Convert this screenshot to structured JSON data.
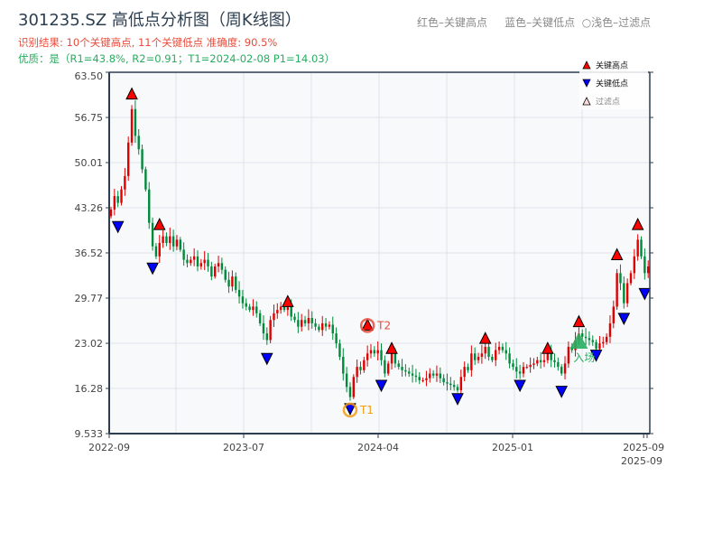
{
  "header": {
    "title": "301235.SZ 高低点分析图（周K线图）",
    "result_line": "识别结果: 10个关键高点, 11个关键低点  准确度: 90.5%",
    "quality_line": "优质：是（R1=43.8%, R2=0.91；T1=2024-02-08 P1=14.03）",
    "color_legend": "红色–关键高点     蓝色–关键低点  ○浅色–过滤点"
  },
  "chart_data": {
    "type": "candlestick",
    "title": "301235.SZ 高低点分析图（周K线图）",
    "ylim": [
      9.533,
      63.5
    ],
    "y_ticks": [
      "9.533",
      "16.28",
      "23.02",
      "29.77",
      "36.52",
      "43.26",
      "50.01",
      "56.75",
      "63.50"
    ],
    "x_ticks": [
      {
        "label": "2022-09",
        "week": 0
      },
      {
        "label": "2023-07",
        "week": 39
      },
      {
        "label": "2024-04",
        "week": 78
      },
      {
        "label": "2025-01",
        "week": 117
      },
      {
        "label": "2025-09",
        "week": 155
      },
      {
        "label": "2025-09",
        "week": 156
      }
    ],
    "up_color": "#e00000",
    "down_color": "#008a3a",
    "closes": [
      43,
      45,
      44,
      46,
      48,
      53,
      58,
      54,
      52,
      49,
      46,
      41,
      37.5,
      36,
      38,
      39,
      38,
      39,
      37.5,
      38.5,
      37,
      35.5,
      35,
      35.5,
      36,
      34.5,
      35,
      35.5,
      34.5,
      33,
      34.5,
      35,
      34,
      32.5,
      31.5,
      33,
      31,
      30,
      29,
      28.5,
      28,
      28.5,
      27.5,
      26,
      24.5,
      23.5,
      26.5,
      27.5,
      28,
      28.5,
      28,
      28.8,
      27,
      26.5,
      25.5,
      26.5,
      26,
      26.8,
      26,
      25.5,
      25,
      26,
      25.5,
      25.8,
      24.5,
      23,
      21,
      18.5,
      16.5,
      15,
      18,
      19.5,
      19,
      20.5,
      21.5,
      22,
      21.5,
      22,
      20.5,
      18.5,
      20,
      21.5,
      20,
      19.5,
      19,
      18.8,
      18.5,
      18.2,
      18,
      17.5,
      17.5,
      17.8,
      18.5,
      18.2,
      18.5,
      17.8,
      17.2,
      17,
      16.8,
      16.5,
      16,
      18,
      19.5,
      19,
      21.5,
      20.5,
      21,
      21.5,
      22.5,
      21,
      20.5,
      22,
      22.5,
      22,
      21.5,
      20,
      19.5,
      18.8,
      18.5,
      19.5,
      19.5,
      19.8,
      20,
      20.5,
      20.2,
      20.5,
      21.5,
      20.5,
      20.2,
      19.5,
      18.5,
      20,
      22.5,
      22,
      23.5,
      24.5,
      24,
      23.8,
      23.5,
      23.2,
      22.2,
      23,
      23.2,
      24,
      26,
      28.5,
      33.5,
      32,
      29,
      32,
      33.5,
      36,
      38.5,
      36,
      33.5,
      34.5
    ],
    "key_highs": [
      {
        "week": 6,
        "price": 59.5
      },
      {
        "week": 14,
        "price": 40
      },
      {
        "week": 51,
        "price": 28.5
      },
      {
        "week": 74,
        "price": 25
      },
      {
        "week": 81,
        "price": 21.5
      },
      {
        "week": 108,
        "price": 23
      },
      {
        "week": 126,
        "price": 21.5
      },
      {
        "week": 135,
        "price": 25.5
      },
      {
        "week": 146,
        "price": 35.5
      },
      {
        "week": 152,
        "price": 40
      }
    ],
    "key_lows": [
      {
        "week": 2,
        "price": 41.2
      },
      {
        "week": 12,
        "price": 35
      },
      {
        "week": 45,
        "price": 21.5
      },
      {
        "week": 69,
        "price": 14
      },
      {
        "week": 78,
        "price": 17.5
      },
      {
        "week": 100,
        "price": 15.5
      },
      {
        "week": 118,
        "price": 17.5
      },
      {
        "week": 130,
        "price": 16.6
      },
      {
        "week": 140,
        "price": 22
      },
      {
        "week": 148,
        "price": 27.5
      },
      {
        "week": 154,
        "price": 31.2
      }
    ],
    "annotations": [
      {
        "label": "T1",
        "week": 69,
        "price": 14,
        "color": "#f39c12"
      },
      {
        "label": "T2",
        "week": 74,
        "price": 25,
        "color": "#e74c3c"
      },
      {
        "label": "入场",
        "week": 135,
        "price": 23.3,
        "color": "#27ae60"
      }
    ],
    "legend": {
      "position": "top-right",
      "items": [
        {
          "label": "关键高点",
          "color": "#ff0000"
        },
        {
          "label": "关键低点",
          "color": "#0000ff"
        },
        {
          "label": "过滤点",
          "color": "#ffdddd"
        }
      ]
    }
  }
}
